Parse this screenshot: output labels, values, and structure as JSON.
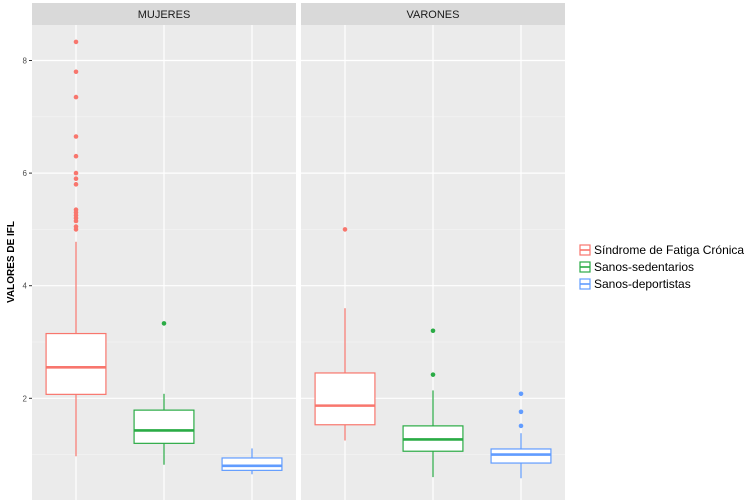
{
  "chart_data": {
    "type": "boxplot",
    "ylabel": "VALORES DE IFL",
    "xlabel": "",
    "ylim": [
      0.2,
      8.7
    ],
    "y_ticks": [
      2,
      4,
      6,
      8
    ],
    "x_tick_labels": false,
    "grid": true,
    "legend_position": "right",
    "panels": [
      "MUJERES",
      "VARONES"
    ],
    "series": [
      {
        "name": "Síndrome de Fatiga Crónica",
        "color": "#f8766d",
        "boxes": [
          {
            "panel": "MUJERES",
            "whisker_low": 0.97,
            "q1": 2.07,
            "median": 2.55,
            "q3": 3.15,
            "whisker_high": 4.78,
            "outliers": [
              5.0,
              5.05,
              5.15,
              5.2,
              5.25,
              5.3,
              5.35,
              5.8,
              5.9,
              6.0,
              6.3,
              6.65,
              7.35,
              7.8,
              8.33
            ]
          },
          {
            "panel": "VARONES",
            "whisker_low": 1.25,
            "q1": 1.53,
            "median": 1.87,
            "q3": 2.45,
            "whisker_high": 3.6,
            "outliers": [
              5.0
            ]
          }
        ]
      },
      {
        "name": "Sanos-sedentarios",
        "color": "#2aab45",
        "boxes": [
          {
            "panel": "MUJERES",
            "whisker_low": 0.82,
            "q1": 1.2,
            "median": 1.43,
            "q3": 1.79,
            "whisker_high": 2.08,
            "outliers": [
              3.33
            ]
          },
          {
            "panel": "VARONES",
            "whisker_low": 0.6,
            "q1": 1.06,
            "median": 1.27,
            "q3": 1.51,
            "whisker_high": 2.14,
            "outliers": [
              2.42,
              3.2
            ]
          }
        ]
      },
      {
        "name": "Sanos-deportistas",
        "color": "#619cff",
        "boxes": [
          {
            "panel": "MUJERES",
            "whisker_low": 0.65,
            "q1": 0.72,
            "median": 0.8,
            "q3": 0.94,
            "whisker_high": 1.11,
            "outliers": []
          },
          {
            "panel": "VARONES",
            "whisker_low": 0.58,
            "q1": 0.85,
            "median": 1.0,
            "q3": 1.1,
            "whisker_high": 1.38,
            "outliers": [
              1.51,
              1.76,
              2.08
            ]
          }
        ]
      }
    ]
  }
}
